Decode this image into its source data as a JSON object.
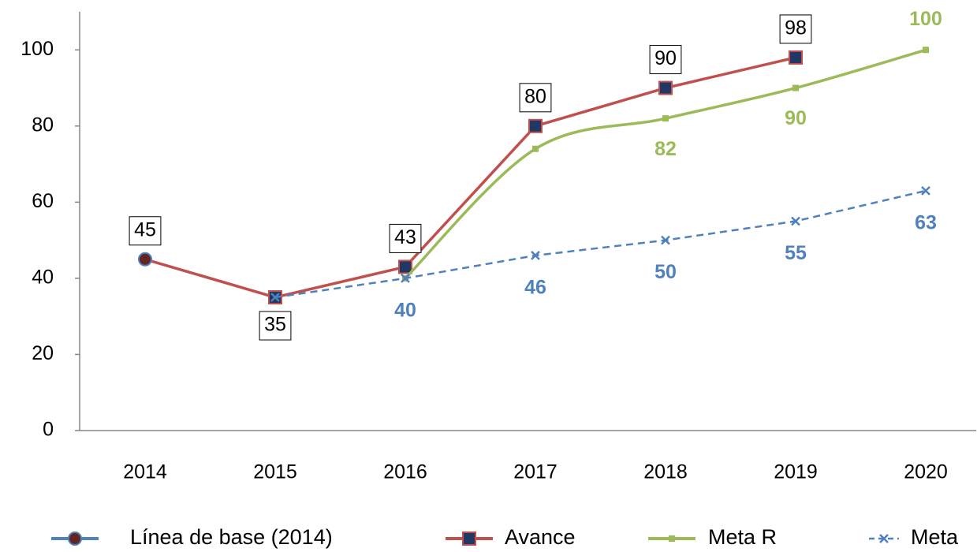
{
  "chart_data": {
    "type": "line",
    "categories": [
      "2014",
      "2015",
      "2016",
      "2017",
      "2018",
      "2019",
      "2020"
    ],
    "ylim": [
      0,
      110
    ],
    "yticks": [
      0,
      20,
      40,
      60,
      80,
      100
    ],
    "series": [
      {
        "name": "Línea de base (2014)",
        "color": "#4f81bd",
        "marker": "circle",
        "marker_color": "#632523",
        "values": [
          45,
          null,
          null,
          null,
          null,
          null,
          null
        ],
        "show_labels": [
          true,
          false,
          false,
          false,
          false,
          false,
          false
        ],
        "label_box": true
      },
      {
        "name": "Avance",
        "color": "#c0504d",
        "marker": "square",
        "marker_color": "#1f3864",
        "values": [
          45,
          35,
          43,
          80,
          90,
          98,
          null
        ],
        "show_labels": [
          false,
          true,
          true,
          true,
          true,
          true,
          false
        ],
        "label_box": true
      },
      {
        "name": "Meta R",
        "color": "#9bbb59",
        "marker": "small-square",
        "marker_color": "#9bbb59",
        "smooth": true,
        "values": [
          null,
          null,
          40,
          74,
          82,
          90,
          100
        ],
        "show_labels": [
          false,
          false,
          false,
          false,
          true,
          true,
          true
        ],
        "label_box": false
      },
      {
        "name": "Meta",
        "color": "#4f81bd",
        "marker": "x",
        "marker_color": "#4f81bd",
        "dashed": true,
        "values": [
          null,
          35,
          40,
          46,
          50,
          55,
          63
        ],
        "show_labels": [
          false,
          false,
          true,
          true,
          true,
          true,
          true
        ],
        "label_box": false
      }
    ],
    "legend": "bottom"
  }
}
